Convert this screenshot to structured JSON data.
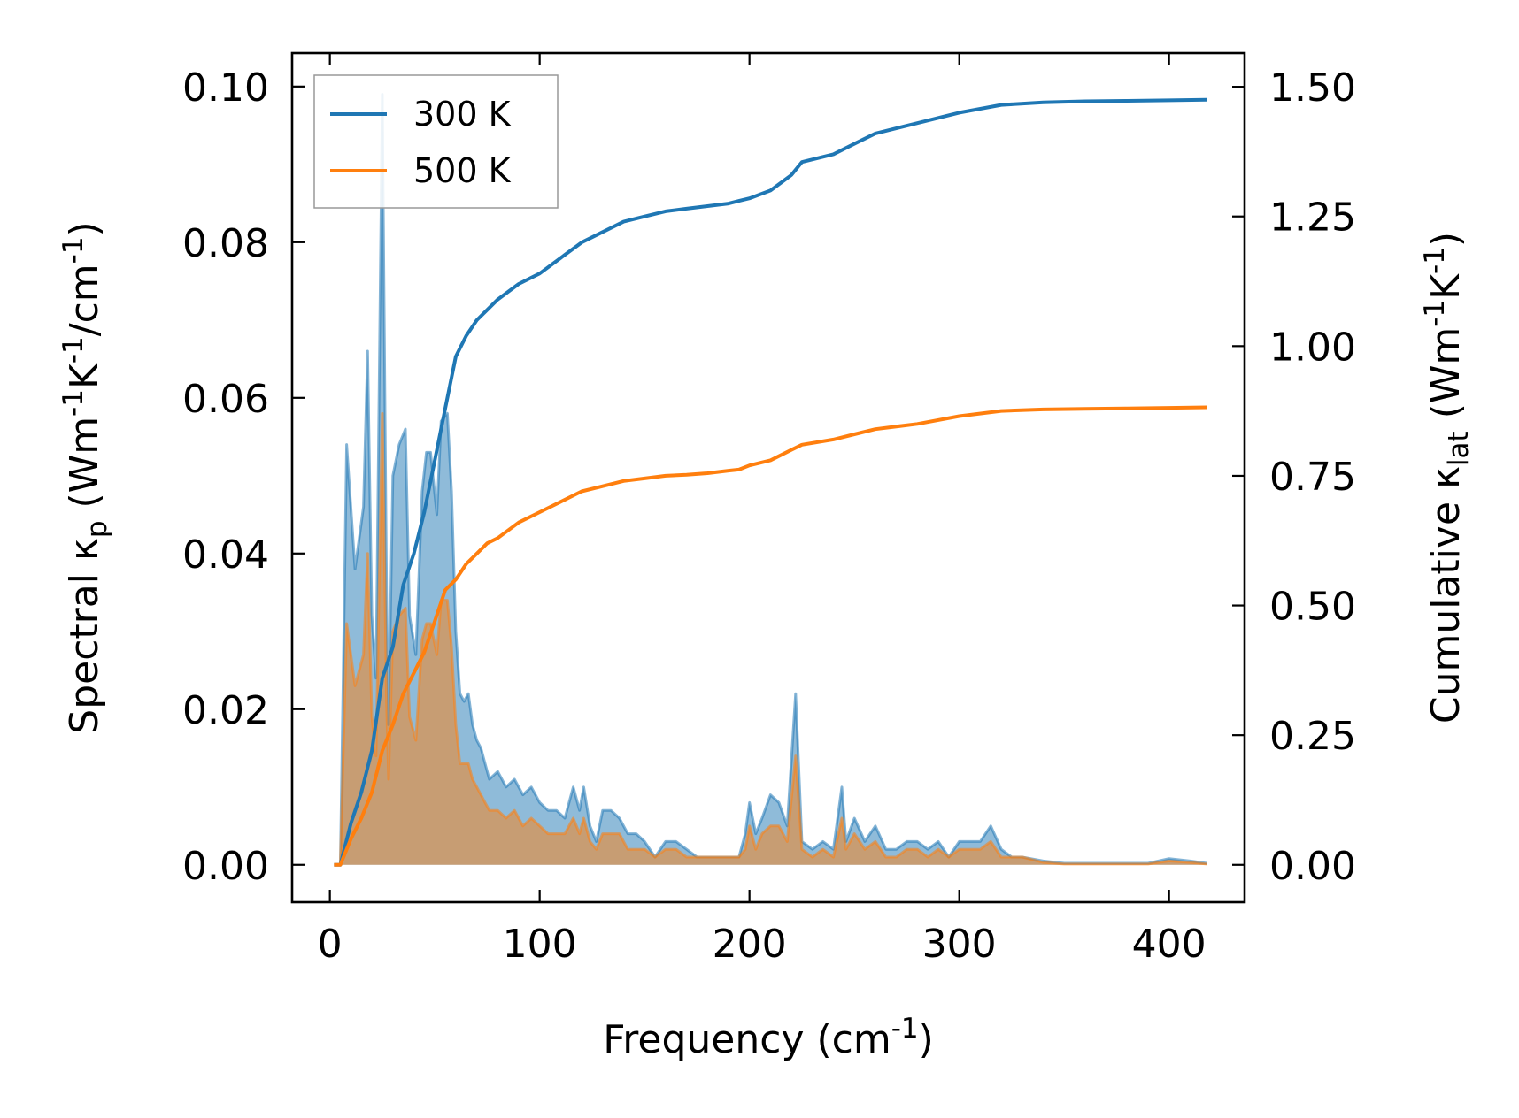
{
  "chart_data": {
    "type": "line",
    "title": "",
    "xlabel": "Frequency (cm$^{-1}$)",
    "ylabel_left": "Spectral κ$_{p}$ (Wm$^{-1}$K$^{-1}$/cm$^{-1}$)",
    "ylabel_right": "Cumulative κ$_{lat}$ (Wm$^{-1}$K$^{-1}$)",
    "xlim": [
      -18,
      436
    ],
    "ylim_left": [
      -0.0048,
      0.1043
    ],
    "ylim_right": [
      -0.072,
      1.565
    ],
    "x_ticks": [
      0,
      100,
      200,
      300,
      400
    ],
    "y_ticks_left": [
      0.0,
      0.02,
      0.04,
      0.06,
      0.08,
      0.1
    ],
    "y_ticks_right": [
      0.0,
      0.25,
      0.5,
      0.75,
      1.0,
      1.25,
      1.5
    ],
    "x_tick_labels": [
      "0",
      "100",
      "200",
      "300",
      "400"
    ],
    "y_tick_labels_left": [
      "0.00",
      "0.02",
      "0.04",
      "0.06",
      "0.08",
      "0.10"
    ],
    "y_tick_labels_right": [
      "0.00",
      "0.25",
      "0.50",
      "0.75",
      "1.00",
      "1.25",
      "1.50"
    ],
    "grid": false,
    "legend_position": "top-left",
    "series_colors": {
      "300 K": "#1f77b4",
      "500 K": "#ff7f0e"
    },
    "spectral_series": [
      {
        "name": "300 K",
        "x": [
          2,
          5,
          8,
          12,
          16,
          18,
          20,
          22,
          25,
          27,
          28,
          30,
          33,
          36,
          38,
          41,
          44,
          46,
          48,
          51,
          53,
          56,
          58,
          60,
          62,
          64,
          66,
          68,
          70,
          72,
          74,
          76,
          80,
          84,
          88,
          92,
          96,
          100,
          104,
          108,
          112,
          116,
          119,
          121,
          124,
          127,
          130,
          134,
          138,
          142,
          146,
          150,
          155,
          160,
          165,
          170,
          175,
          180,
          185,
          190,
          195,
          198,
          200,
          203,
          206,
          210,
          214,
          218,
          222,
          225,
          230,
          235,
          240,
          244,
          246,
          250,
          255,
          260,
          265,
          270,
          275,
          280,
          285,
          290,
          295,
          300,
          305,
          310,
          315,
          320,
          325,
          330,
          340,
          350,
          360,
          370,
          380,
          390,
          400,
          410,
          418
        ],
        "y": [
          0.0,
          0.0,
          0.054,
          0.038,
          0.046,
          0.066,
          0.032,
          0.024,
          0.099,
          0.035,
          0.018,
          0.05,
          0.054,
          0.056,
          0.032,
          0.027,
          0.048,
          0.053,
          0.053,
          0.045,
          0.057,
          0.058,
          0.048,
          0.03,
          0.022,
          0.021,
          0.022,
          0.018,
          0.016,
          0.015,
          0.013,
          0.011,
          0.012,
          0.01,
          0.011,
          0.009,
          0.01,
          0.008,
          0.007,
          0.007,
          0.006,
          0.01,
          0.007,
          0.01,
          0.005,
          0.003,
          0.007,
          0.007,
          0.006,
          0.004,
          0.004,
          0.003,
          0.001,
          0.003,
          0.003,
          0.002,
          0.001,
          0.001,
          0.001,
          0.001,
          0.001,
          0.004,
          0.008,
          0.004,
          0.006,
          0.009,
          0.008,
          0.005,
          0.022,
          0.003,
          0.002,
          0.003,
          0.002,
          0.01,
          0.003,
          0.006,
          0.003,
          0.005,
          0.002,
          0.002,
          0.003,
          0.003,
          0.002,
          0.003,
          0.001,
          0.003,
          0.003,
          0.003,
          0.005,
          0.002,
          0.001,
          0.001,
          0.0005,
          0.0002,
          0.0002,
          0.0002,
          0.0002,
          0.0002,
          0.0008,
          0.0005,
          0.0002
        ]
      },
      {
        "name": "500 K",
        "x": [
          2,
          5,
          8,
          12,
          16,
          18,
          20,
          22,
          25,
          27,
          28,
          30,
          33,
          36,
          38,
          41,
          44,
          46,
          48,
          51,
          53,
          56,
          58,
          60,
          62,
          64,
          66,
          68,
          70,
          72,
          74,
          76,
          80,
          84,
          88,
          92,
          96,
          100,
          104,
          108,
          112,
          116,
          119,
          121,
          124,
          127,
          130,
          134,
          138,
          142,
          146,
          150,
          155,
          160,
          165,
          170,
          175,
          180,
          185,
          190,
          195,
          198,
          200,
          203,
          206,
          210,
          214,
          218,
          222,
          225,
          230,
          235,
          240,
          244,
          246,
          250,
          255,
          260,
          265,
          270,
          275,
          280,
          285,
          290,
          295,
          300,
          305,
          310,
          315,
          320,
          325,
          330,
          340,
          350,
          360,
          370,
          380,
          390,
          400,
          410,
          418
        ],
        "y": [
          0.0,
          0.0,
          0.031,
          0.023,
          0.027,
          0.04,
          0.019,
          0.014,
          0.058,
          0.021,
          0.011,
          0.03,
          0.032,
          0.033,
          0.019,
          0.016,
          0.029,
          0.031,
          0.031,
          0.027,
          0.034,
          0.034,
          0.028,
          0.018,
          0.013,
          0.013,
          0.013,
          0.011,
          0.01,
          0.009,
          0.008,
          0.007,
          0.007,
          0.006,
          0.007,
          0.005,
          0.006,
          0.005,
          0.004,
          0.004,
          0.004,
          0.006,
          0.004,
          0.006,
          0.003,
          0.002,
          0.004,
          0.004,
          0.004,
          0.002,
          0.002,
          0.002,
          0.001,
          0.002,
          0.002,
          0.001,
          0.001,
          0.001,
          0.001,
          0.001,
          0.001,
          0.002,
          0.005,
          0.002,
          0.004,
          0.005,
          0.005,
          0.003,
          0.014,
          0.002,
          0.001,
          0.002,
          0.001,
          0.006,
          0.002,
          0.004,
          0.002,
          0.003,
          0.001,
          0.001,
          0.002,
          0.002,
          0.001,
          0.002,
          0.001,
          0.002,
          0.002,
          0.002,
          0.003,
          0.001,
          0.001,
          0.001,
          0.0003,
          0.0001,
          0.0001,
          0.0001,
          0.0001,
          0.0001,
          0.0005,
          0.0003,
          0.0001
        ]
      }
    ],
    "cumulative_series": [
      {
        "name": "300 K",
        "x": [
          2,
          5,
          10,
          15,
          20,
          25,
          30,
          35,
          40,
          45,
          50,
          55,
          60,
          65,
          70,
          75,
          80,
          90,
          100,
          110,
          120,
          130,
          140,
          150,
          160,
          170,
          180,
          190,
          195,
          200,
          210,
          220,
          225,
          240,
          250,
          260,
          280,
          300,
          320,
          340,
          360,
          380,
          400,
          418
        ],
        "y": [
          0.0,
          0.0,
          0.08,
          0.14,
          0.22,
          0.36,
          0.42,
          0.54,
          0.6,
          0.68,
          0.78,
          0.88,
          0.98,
          1.02,
          1.05,
          1.07,
          1.09,
          1.12,
          1.14,
          1.17,
          1.2,
          1.22,
          1.24,
          1.25,
          1.26,
          1.265,
          1.27,
          1.275,
          1.28,
          1.285,
          1.3,
          1.33,
          1.355,
          1.37,
          1.39,
          1.41,
          1.43,
          1.45,
          1.465,
          1.47,
          1.472,
          1.473,
          1.474,
          1.475
        ]
      },
      {
        "name": "500 K",
        "x": [
          2,
          5,
          10,
          15,
          20,
          25,
          30,
          35,
          40,
          45,
          50,
          55,
          60,
          65,
          70,
          75,
          80,
          90,
          100,
          110,
          120,
          130,
          140,
          150,
          160,
          170,
          180,
          190,
          195,
          200,
          210,
          220,
          225,
          240,
          250,
          260,
          280,
          300,
          320,
          340,
          360,
          380,
          400,
          418
        ],
        "y": [
          0.0,
          0.0,
          0.05,
          0.09,
          0.14,
          0.22,
          0.27,
          0.33,
          0.37,
          0.41,
          0.47,
          0.53,
          0.55,
          0.58,
          0.6,
          0.62,
          0.63,
          0.66,
          0.68,
          0.7,
          0.72,
          0.73,
          0.74,
          0.745,
          0.75,
          0.752,
          0.755,
          0.76,
          0.762,
          0.77,
          0.78,
          0.8,
          0.81,
          0.82,
          0.83,
          0.84,
          0.85,
          0.865,
          0.875,
          0.878,
          0.879,
          0.88,
          0.881,
          0.882
        ]
      }
    ],
    "legend": [
      "300 K",
      "500 K"
    ]
  }
}
